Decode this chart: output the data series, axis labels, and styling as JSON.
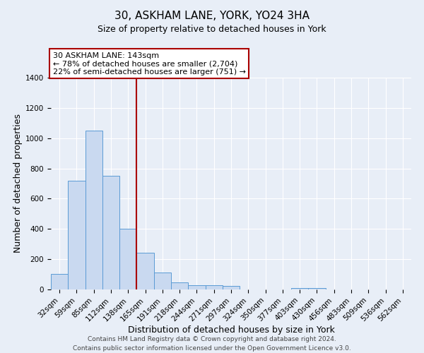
{
  "title": "30, ASKHAM LANE, YORK, YO24 3HA",
  "subtitle": "Size of property relative to detached houses in York",
  "xlabel": "Distribution of detached houses by size in York",
  "ylabel": "Number of detached properties",
  "categories": [
    "32sqm",
    "59sqm",
    "85sqm",
    "112sqm",
    "138sqm",
    "165sqm",
    "191sqm",
    "218sqm",
    "244sqm",
    "271sqm",
    "297sqm",
    "324sqm",
    "350sqm",
    "377sqm",
    "403sqm",
    "430sqm",
    "456sqm",
    "483sqm",
    "509sqm",
    "536sqm",
    "562sqm"
  ],
  "values": [
    105,
    720,
    1050,
    750,
    400,
    245,
    110,
    48,
    28,
    27,
    25,
    0,
    0,
    0,
    10,
    8,
    0,
    0,
    0,
    0,
    0
  ],
  "bar_color": "#c9d9f0",
  "bar_edge_color": "#5b9bd5",
  "ylim": [
    0,
    1400
  ],
  "yticks": [
    0,
    200,
    400,
    600,
    800,
    1000,
    1200,
    1400
  ],
  "vline_x_index": 4,
  "vline_color": "#aa0000",
  "annotation_title": "30 ASKHAM LANE: 143sqm",
  "annotation_line1": "← 78% of detached houses are smaller (2,704)",
  "annotation_line2": "22% of semi-detached houses are larger (751) →",
  "annotation_box_color": "#ffffff",
  "annotation_box_edge_color": "#aa0000",
  "footer_line1": "Contains HM Land Registry data © Crown copyright and database right 2024.",
  "footer_line2": "Contains public sector information licensed under the Open Government Licence v3.0.",
  "background_color": "#e8eef7",
  "plot_background_color": "#e8eef7",
  "title_fontsize": 11,
  "subtitle_fontsize": 9,
  "axis_label_fontsize": 9,
  "tick_fontsize": 7.5,
  "footer_fontsize": 6.5,
  "annotation_fontsize": 8
}
